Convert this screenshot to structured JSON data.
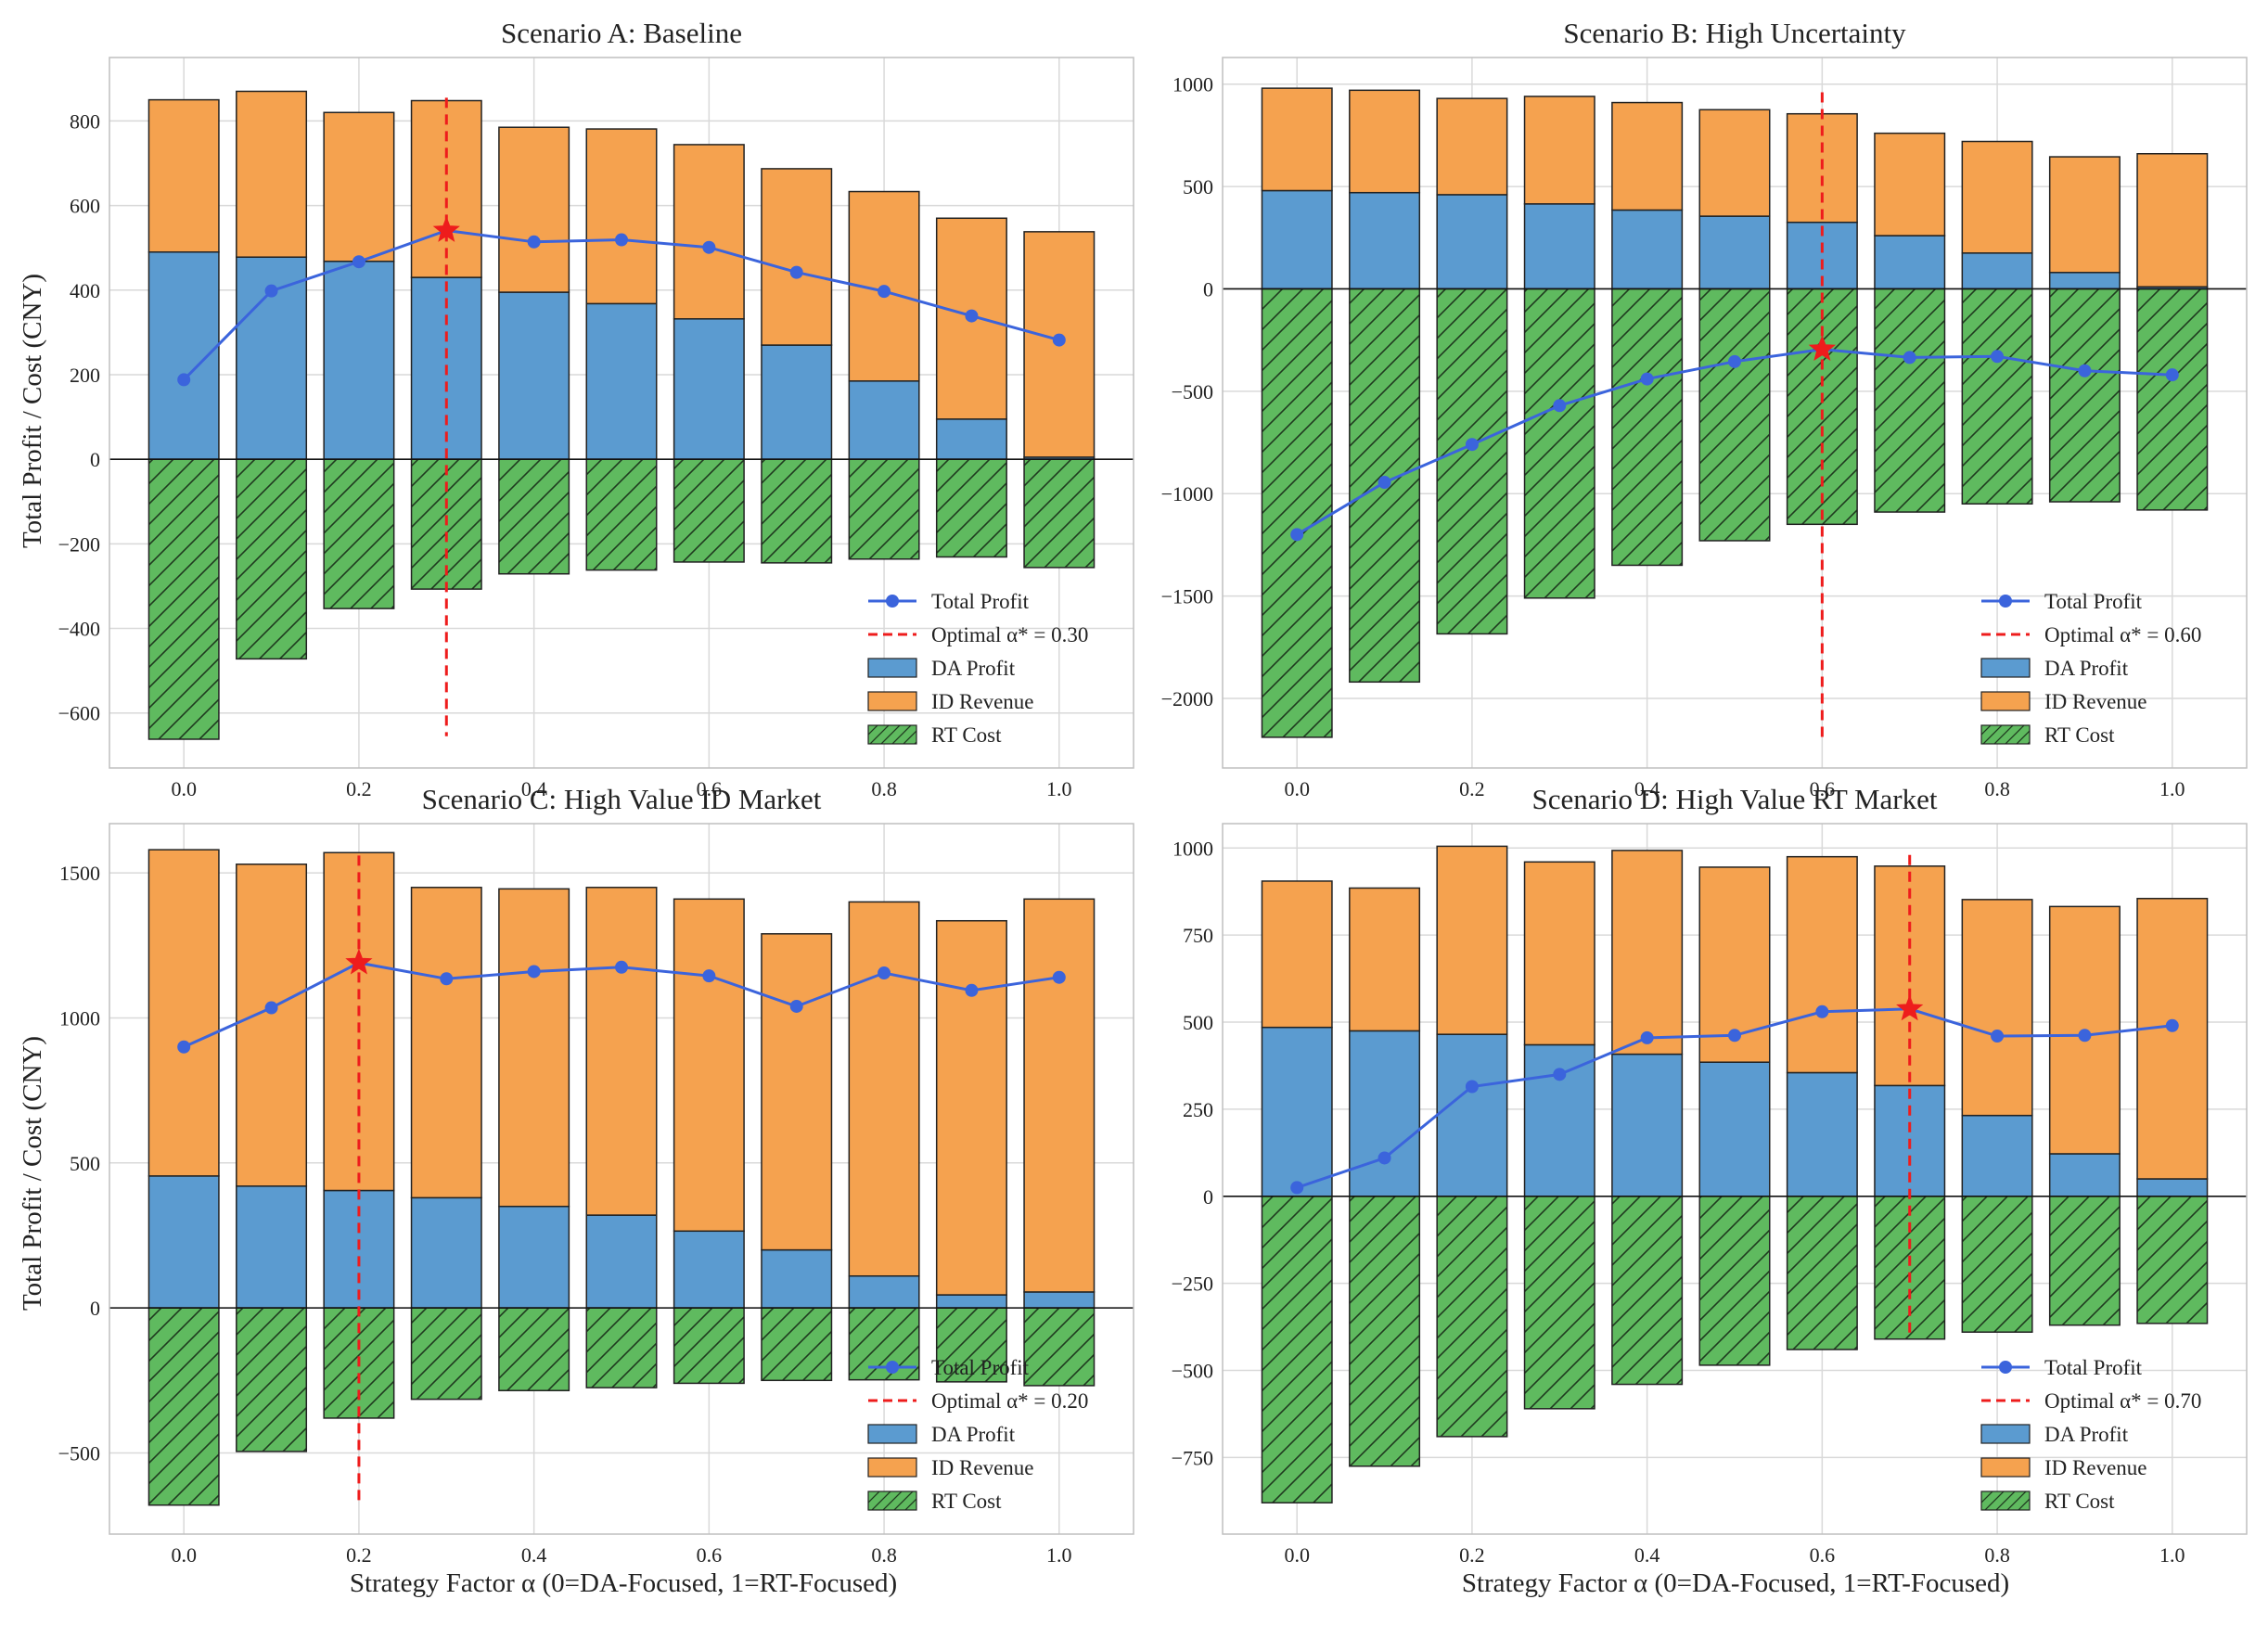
{
  "figure": {
    "shared_ylabel": "Total Profit / Cost (CNY)",
    "shared_xlabel": "Strategy Factor α (0=DA-Focused, 1=RT-Focused)"
  },
  "legend_labels": {
    "total": "Total Profit",
    "da": "DA Profit",
    "id": "ID Revenue",
    "rt": "RT Cost"
  },
  "colors": {
    "da": "#5b9bd0",
    "id": "#f5a24f",
    "rt": "#5fba5f",
    "total": "#3b64dc",
    "optimal": "#ee1c1c",
    "grid": "#d9d9d9",
    "edge": "#222222"
  },
  "chart_data": [
    {
      "type": "bar",
      "title": "Scenario A: Baseline",
      "xlabel": "",
      "ylabel": "Total Profit / Cost (CNY)",
      "x": [
        0.0,
        0.1,
        0.2,
        0.3,
        0.4,
        0.5,
        0.6,
        0.7,
        0.8,
        0.9,
        1.0
      ],
      "xticks": [
        0.0,
        0.2,
        0.4,
        0.6,
        0.8,
        1.0
      ],
      "xtick_labels": [
        "0.0",
        "0.2",
        "0.4",
        "0.6",
        "0.8",
        "1.0"
      ],
      "ylim": [
        -730,
        950
      ],
      "yticks": [
        -600,
        -400,
        -200,
        0,
        200,
        400,
        600,
        800
      ],
      "ytick_labels": [
        "−600",
        "−400",
        "−200",
        "0",
        "200",
        "400",
        "600",
        "800"
      ],
      "series": [
        {
          "name": "DA Profit",
          "values": [
            490,
            478,
            468,
            430,
            395,
            368,
            332,
            270,
            185,
            95,
            5
          ]
        },
        {
          "name": "ID Revenue",
          "values": [
            360,
            392,
            352,
            418,
            390,
            413,
            412,
            417,
            448,
            475,
            533
          ]
        },
        {
          "name": "RT Cost",
          "values": [
            -662,
            -472,
            -353,
            -307,
            -271,
            -262,
            -243,
            -245,
            -236,
            -231,
            -256
          ]
        },
        {
          "name": "Total Profit",
          "values": [
            188,
            398,
            467,
            541,
            514,
            519,
            501,
            442,
            397,
            339,
            282
          ]
        }
      ],
      "optimal": {
        "alpha": 0.3,
        "label": "Optimal α* = 0.30",
        "line_ymin": -655,
        "line_ymax": 855
      },
      "legend_position": "lower-right"
    },
    {
      "type": "bar",
      "title": "Scenario B: High Uncertainty",
      "xlabel": "",
      "ylabel": "",
      "x": [
        0.0,
        0.1,
        0.2,
        0.3,
        0.4,
        0.5,
        0.6,
        0.7,
        0.8,
        0.9,
        1.0
      ],
      "xticks": [
        0.0,
        0.2,
        0.4,
        0.6,
        0.8,
        1.0
      ],
      "xtick_labels": [
        "0.0",
        "0.2",
        "0.4",
        "0.6",
        "0.8",
        "1.0"
      ],
      "ylim": [
        -2340,
        1130
      ],
      "yticks": [
        -2000,
        -1500,
        -1000,
        -500,
        0,
        500,
        1000
      ],
      "ytick_labels": [
        "−2000",
        "−1500",
        "−1000",
        "−500",
        "0",
        "500",
        "1000"
      ],
      "series": [
        {
          "name": "DA Profit",
          "values": [
            480,
            470,
            460,
            415,
            385,
            355,
            325,
            260,
            175,
            80,
            10
          ]
        },
        {
          "name": "ID Revenue",
          "values": [
            500,
            500,
            470,
            525,
            525,
            520,
            530,
            500,
            545,
            565,
            650
          ]
        },
        {
          "name": "RT Cost",
          "values": [
            -2190,
            -1920,
            -1685,
            -1510,
            -1350,
            -1230,
            -1150,
            -1090,
            -1050,
            -1040,
            -1080
          ]
        },
        {
          "name": "Total Profit",
          "values": [
            -1200,
            -945,
            -760,
            -570,
            -440,
            -355,
            -295,
            -335,
            -330,
            -400,
            -420
          ]
        }
      ],
      "optimal": {
        "alpha": 0.6,
        "label": "Optimal α* = 0.60",
        "line_ymin": -2190,
        "line_ymax": 960
      },
      "legend_position": "lower-right"
    },
    {
      "type": "bar",
      "title": "Scenario C: High Value ID Market",
      "xlabel": "Strategy Factor α (0=DA-Focused, 1=RT-Focused)",
      "ylabel": "Total Profit / Cost (CNY)",
      "x": [
        0.0,
        0.1,
        0.2,
        0.3,
        0.4,
        0.5,
        0.6,
        0.7,
        0.8,
        0.9,
        1.0
      ],
      "xticks": [
        0.0,
        0.2,
        0.4,
        0.6,
        0.8,
        1.0
      ],
      "xtick_labels": [
        "0.0",
        "0.2",
        "0.4",
        "0.6",
        "0.8",
        "1.0"
      ],
      "ylim": [
        -780,
        1670
      ],
      "yticks": [
        -500,
        0,
        500,
        1000,
        1500
      ],
      "ytick_labels": [
        "−500",
        "0",
        "500",
        "1000",
        "1500"
      ],
      "series": [
        {
          "name": "DA Profit",
          "values": [
            455,
            420,
            405,
            380,
            350,
            320,
            265,
            200,
            110,
            45,
            55
          ]
        },
        {
          "name": "ID Revenue",
          "values": [
            1125,
            1110,
            1165,
            1070,
            1095,
            1130,
            1145,
            1090,
            1290,
            1290,
            1355
          ]
        },
        {
          "name": "RT Cost",
          "values": [
            -680,
            -495,
            -380,
            -315,
            -285,
            -275,
            -260,
            -250,
            -248,
            -255,
            -268
          ]
        },
        {
          "name": "Total Profit",
          "values": [
            900,
            1035,
            1190,
            1135,
            1160,
            1175,
            1145,
            1040,
            1155,
            1095,
            1140
          ]
        }
      ],
      "optimal": {
        "alpha": 0.2,
        "label": "Optimal α* = 0.20",
        "line_ymin": -670,
        "line_ymax": 1560
      },
      "legend_position": "lower-right"
    },
    {
      "type": "bar",
      "title": "Scenario D: High Value RT Market",
      "xlabel": "Strategy Factor α (0=DA-Focused, 1=RT-Focused)",
      "ylabel": "",
      "x": [
        0.0,
        0.1,
        0.2,
        0.3,
        0.4,
        0.5,
        0.6,
        0.7,
        0.8,
        0.9,
        1.0
      ],
      "xticks": [
        0.0,
        0.2,
        0.4,
        0.6,
        0.8,
        1.0
      ],
      "xtick_labels": [
        "0.0",
        "0.2",
        "0.4",
        "0.6",
        "0.8",
        "1.0"
      ],
      "ylim": [
        -970,
        1070
      ],
      "yticks": [
        -750,
        -500,
        -250,
        0,
        250,
        500,
        750,
        1000
      ],
      "ytick_labels": [
        "−750",
        "−500",
        "−250",
        "0",
        "250",
        "500",
        "750",
        "1000"
      ],
      "series": [
        {
          "name": "DA Profit",
          "values": [
            485,
            475,
            465,
            435,
            408,
            385,
            355,
            318,
            232,
            122,
            50
          ]
        },
        {
          "name": "ID Revenue",
          "values": [
            420,
            410,
            540,
            525,
            585,
            560,
            620,
            630,
            620,
            710,
            805
          ]
        },
        {
          "name": "RT Cost",
          "values": [
            -880,
            -775,
            -690,
            -610,
            -540,
            -485,
            -440,
            -410,
            -390,
            -370,
            -365
          ]
        },
        {
          "name": "Total Profit",
          "values": [
            25,
            110,
            315,
            350,
            455,
            462,
            530,
            538,
            460,
            462,
            490
          ]
        }
      ],
      "optimal": {
        "alpha": 0.7,
        "label": "Optimal α* = 0.70",
        "line_ymin": -410,
        "line_ymax": 980
      },
      "legend_position": "lower-right"
    }
  ]
}
